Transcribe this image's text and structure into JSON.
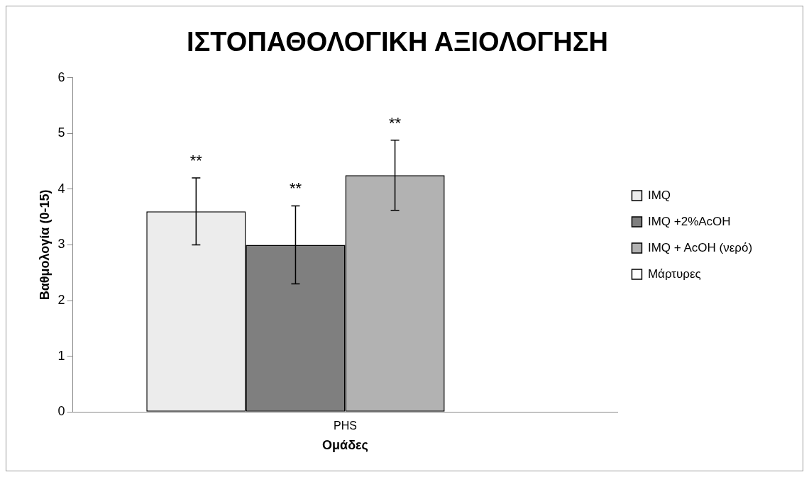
{
  "chart_data": {
    "type": "bar",
    "title": "ΙΣΤΟΠΑΘΟΛΟΓΙΚΗ ΑΞΙΟΛΟΓΗΣΗ",
    "xlabel": "Ομάδες",
    "ylabel": "Βαθμολογία (0-15)",
    "categories": [
      "PHS"
    ],
    "series": [
      {
        "name": "IMQ",
        "color": "#ececec",
        "values": [
          3.6
        ],
        "errors": [
          0.6
        ]
      },
      {
        "name": "IMQ +2%AcOH",
        "color": "#7f7f7f",
        "values": [
          3.0
        ],
        "errors": [
          0.7
        ]
      },
      {
        "name": "IMQ + AcOH (νερό)",
        "color": "#b2b2b2",
        "values": [
          4.25
        ],
        "errors": [
          0.63
        ]
      },
      {
        "name": "Μάρτυρες",
        "color": "#ffffff",
        "values": [
          0
        ]
      }
    ],
    "annotations": [
      "**",
      "**",
      "**"
    ],
    "ylim": [
      0,
      6
    ],
    "yticks": [
      0,
      1,
      2,
      3,
      4,
      5,
      6
    ],
    "grid": false,
    "legend": "right"
  }
}
